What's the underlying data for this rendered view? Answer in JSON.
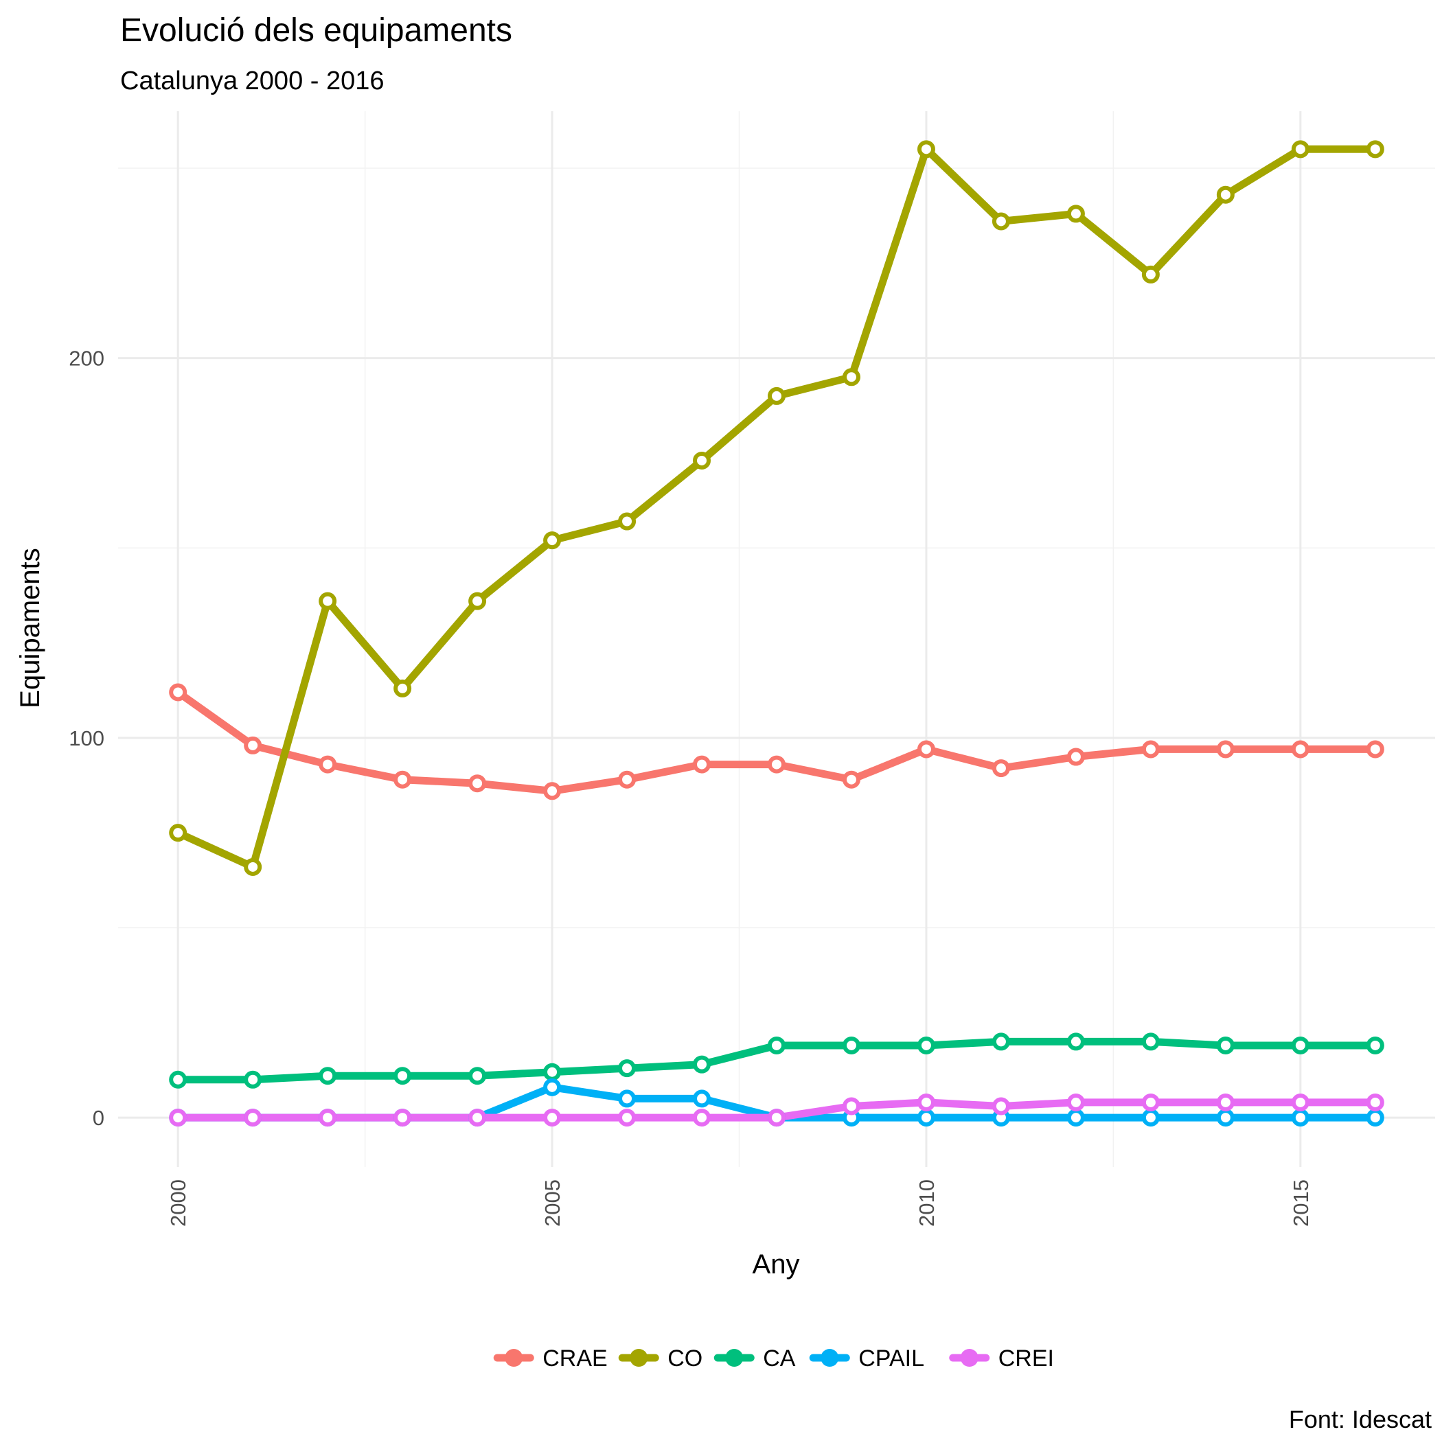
{
  "chart_data": {
    "type": "line",
    "title": "Evolució dels equipaments",
    "subtitle": "Catalunya 2000 - 2016",
    "xlabel": "Any",
    "ylabel": "Equipaments",
    "caption": "Font: Idescat",
    "x": [
      2000,
      2001,
      2002,
      2003,
      2004,
      2005,
      2006,
      2007,
      2008,
      2009,
      2010,
      2011,
      2012,
      2013,
      2014,
      2015,
      2016
    ],
    "xlim": [
      1999.2,
      2016.8
    ],
    "ylim": [
      -13,
      265
    ],
    "x_ticks": [
      2000,
      2005,
      2010,
      2015
    ],
    "x_tick_labels": [
      "2000",
      "2005",
      "2010",
      "2015"
    ],
    "y_ticks": [
      0,
      100,
      200
    ],
    "y_tick_labels": [
      "0",
      "100",
      "200"
    ],
    "grid": true,
    "legend_position": "bottom",
    "series": [
      {
        "name": "CRAE",
        "color": "#F8766D",
        "values": [
          112,
          98,
          93,
          89,
          88,
          86,
          89,
          93,
          93,
          89,
          97,
          92,
          95,
          97,
          97,
          97,
          97
        ]
      },
      {
        "name": "CO",
        "color": "#A3A500",
        "values": [
          75,
          66,
          136,
          113,
          136,
          152,
          157,
          173,
          190,
          195,
          255,
          236,
          238,
          222,
          243,
          255,
          255
        ]
      },
      {
        "name": "CA",
        "color": "#00BF7D",
        "values": [
          10,
          10,
          11,
          11,
          11,
          12,
          13,
          14,
          19,
          19,
          19,
          20,
          20,
          20,
          19,
          19,
          19
        ]
      },
      {
        "name": "CPAIL",
        "color": "#00B0F6",
        "values": [
          0,
          0,
          0,
          0,
          0,
          8,
          5,
          5,
          0,
          0,
          0,
          0,
          0,
          0,
          0,
          0,
          0
        ]
      },
      {
        "name": "CREI",
        "color": "#E76BF3",
        "values": [
          0,
          0,
          0,
          0,
          0,
          0,
          0,
          0,
          0,
          3,
          4,
          3,
          4,
          4,
          4,
          4,
          4
        ]
      }
    ]
  }
}
